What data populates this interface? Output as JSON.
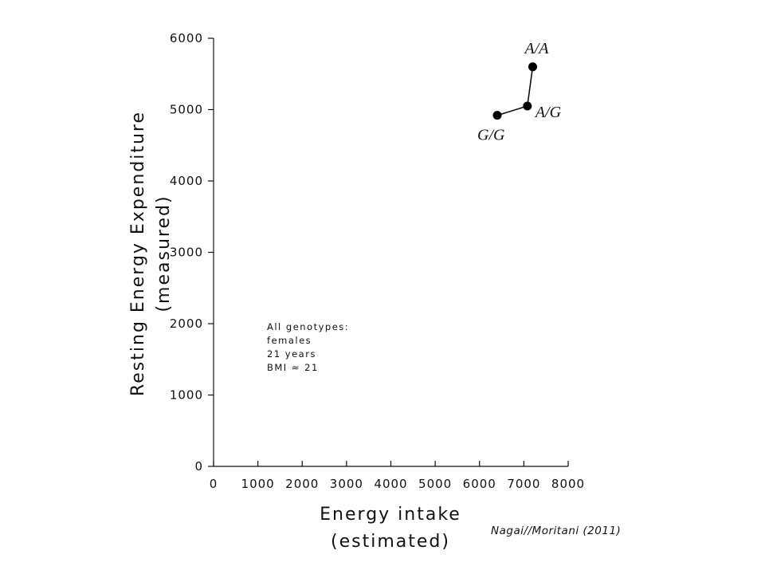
{
  "chart_data": {
    "type": "scatter",
    "title": "",
    "xlabel_lines": [
      "Energy  intake",
      "(estimated)"
    ],
    "ylabel_lines": [
      "Resting  Energy  Expenditure",
      "(measured)"
    ],
    "xlim": [
      0,
      8000
    ],
    "ylim": [
      0,
      6000
    ],
    "x_ticks": [
      0,
      1000,
      2000,
      3000,
      4000,
      5000,
      6000,
      7000,
      8000
    ],
    "y_ticks": [
      0,
      1000,
      2000,
      3000,
      4000,
      5000,
      6000
    ],
    "grid": false,
    "connected": true,
    "points": [
      {
        "label": "G/G",
        "x": 6400,
        "y": 4920
      },
      {
        "label": "A/G",
        "x": 7080,
        "y": 5050
      },
      {
        "label": "A/A",
        "x": 7200,
        "y": 5600
      }
    ],
    "annotation_lines": [
      "All   genotypes:",
      "females",
      "21   years",
      "BMI  ≈  21"
    ],
    "credit": "Nagai//Moritani (2011)"
  }
}
